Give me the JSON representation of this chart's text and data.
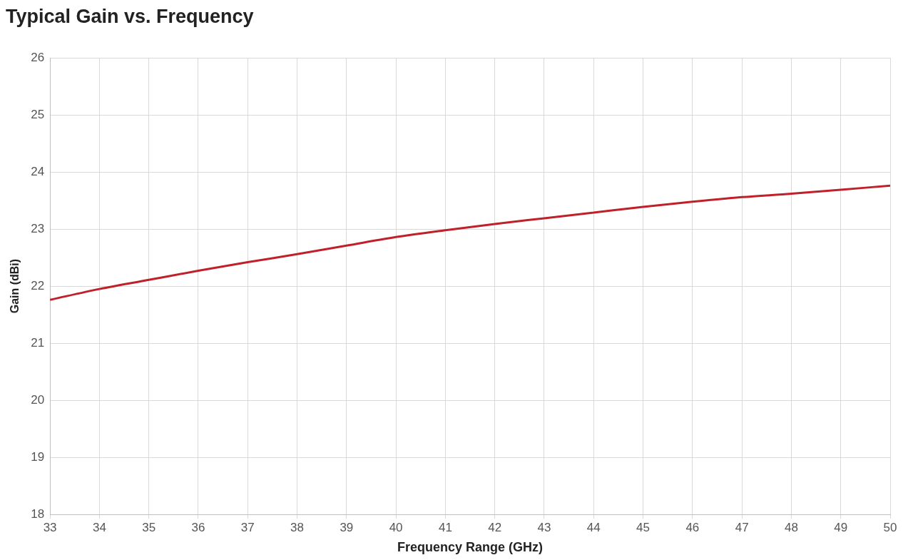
{
  "chart_data": {
    "type": "line",
    "title": "Typical Gain vs. Frequency",
    "xlabel": "Frequency Range (GHz)",
    "ylabel": "Gain (dBi)",
    "series": [
      {
        "color": "#c0202a",
        "x": [
          33,
          34,
          35,
          36,
          37,
          38,
          39,
          40,
          41,
          42,
          43,
          44,
          45,
          46,
          47,
          48,
          49,
          50
        ],
        "values": [
          21.76,
          21.95,
          22.11,
          22.27,
          22.42,
          22.56,
          22.71,
          22.86,
          22.98,
          23.09,
          23.19,
          23.29,
          23.39,
          23.48,
          23.56,
          23.62,
          23.69,
          23.76
        ]
      }
    ],
    "xlim": [
      33,
      50
    ],
    "xticks": [
      33,
      34,
      35,
      36,
      37,
      38,
      39,
      40,
      41,
      42,
      43,
      44,
      45,
      46,
      47,
      48,
      49,
      50
    ],
    "ylim": [
      18,
      26
    ],
    "yticks": [
      18,
      19,
      20,
      21,
      22,
      23,
      24,
      25,
      26
    ],
    "grid": true,
    "legend": false,
    "marker": "none",
    "line_style": "solid"
  }
}
